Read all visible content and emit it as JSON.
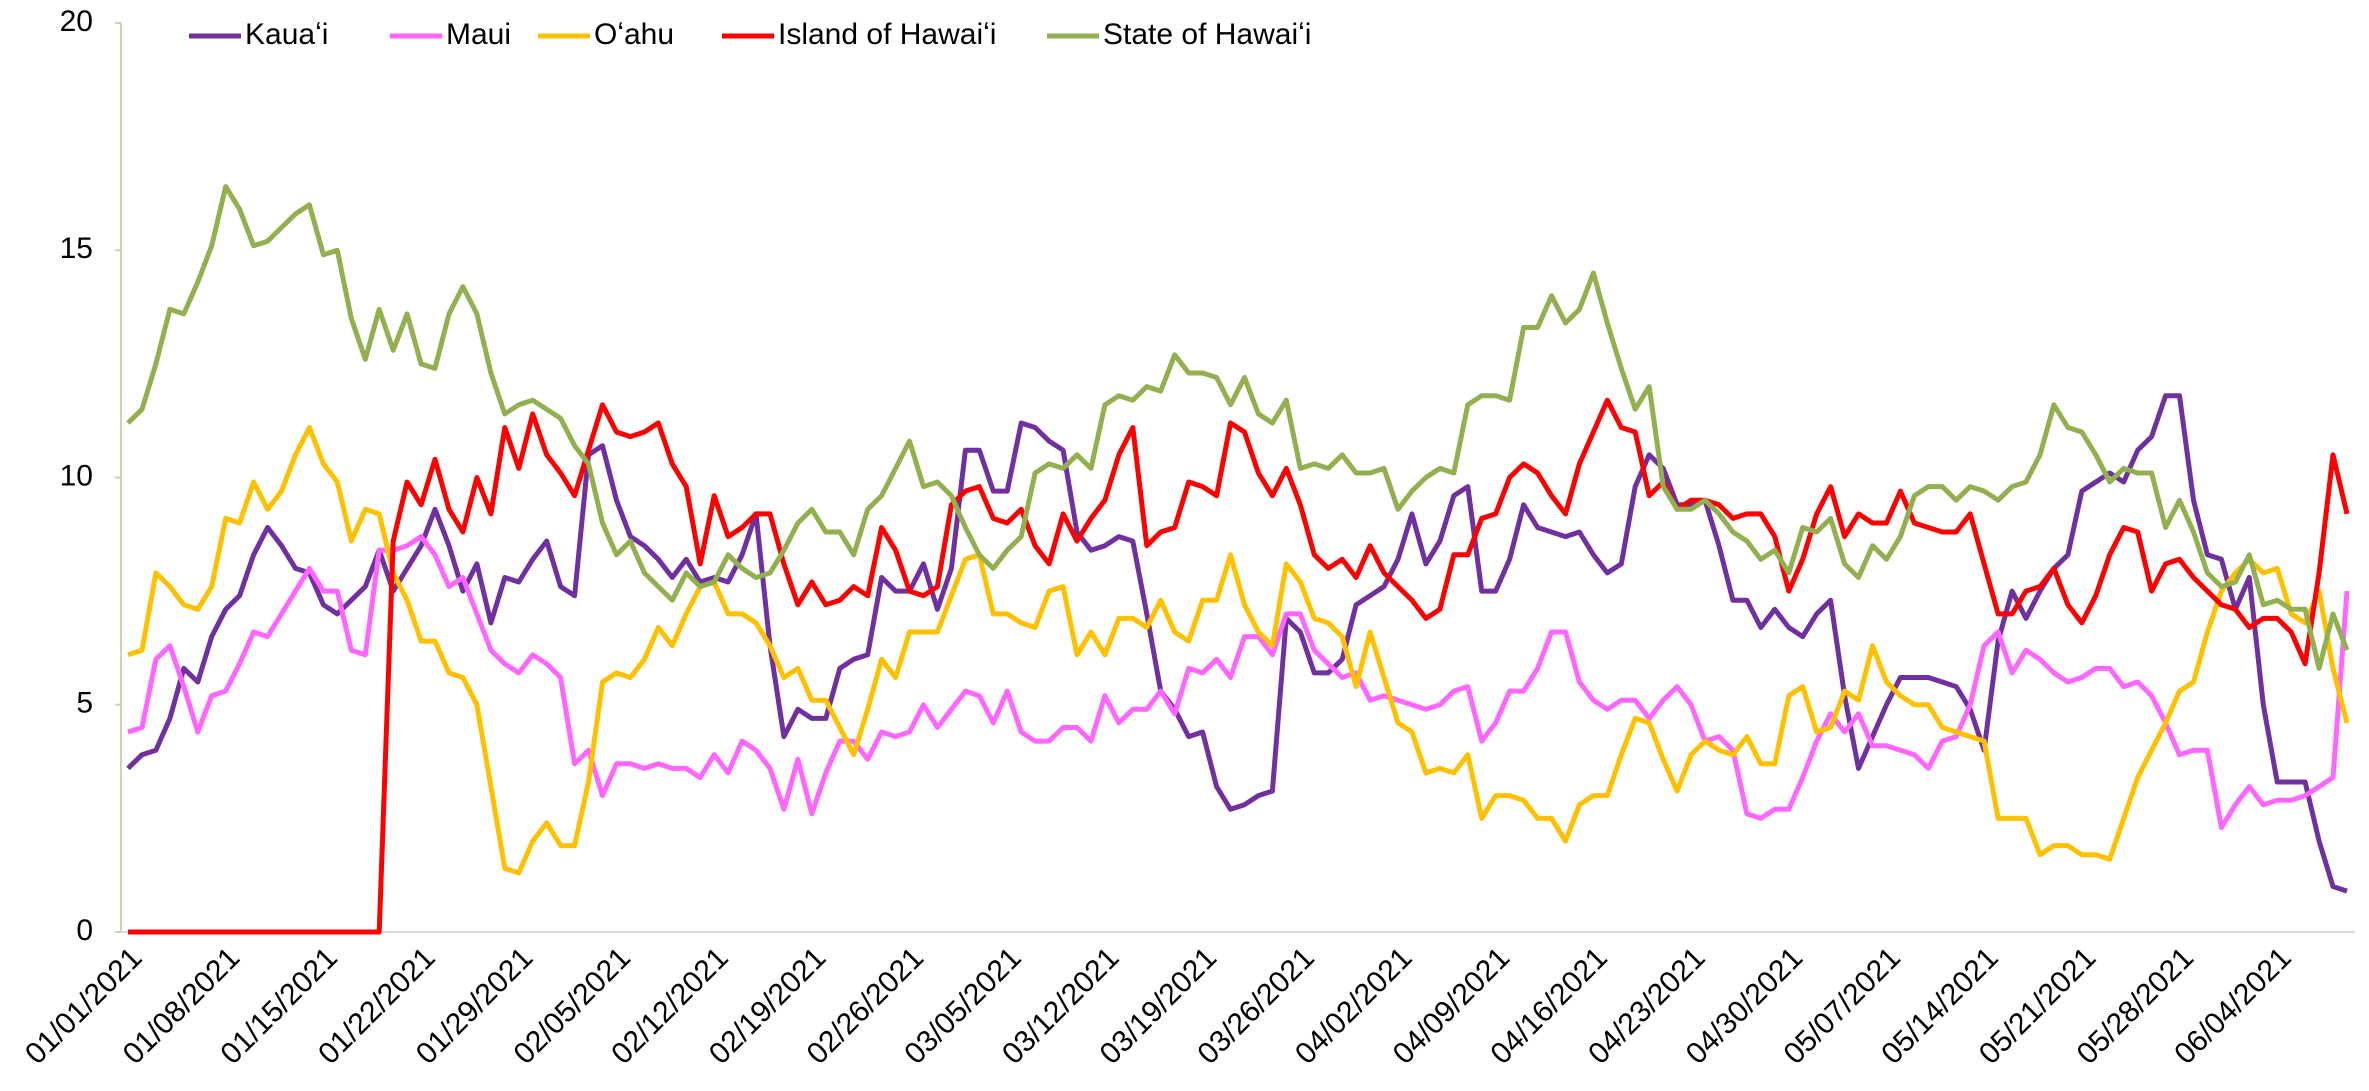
{
  "chart_data": {
    "type": "line",
    "categories": [
      "01/01/2021",
      null,
      null,
      null,
      null,
      null,
      null,
      "01/08/2021",
      null,
      null,
      null,
      null,
      null,
      null,
      "01/15/2021",
      null,
      null,
      null,
      null,
      null,
      null,
      "01/22/2021",
      null,
      null,
      null,
      null,
      null,
      null,
      "01/29/2021",
      null,
      null,
      null,
      null,
      null,
      null,
      "02/05/2021",
      null,
      null,
      null,
      null,
      null,
      null,
      "02/12/2021",
      null,
      null,
      null,
      null,
      null,
      null,
      "02/19/2021",
      null,
      null,
      null,
      null,
      null,
      null,
      "02/26/2021",
      null,
      null,
      null,
      null,
      null,
      null,
      "03/05/2021",
      null,
      null,
      null,
      null,
      null,
      null,
      "03/12/2021",
      null,
      null,
      null,
      null,
      null,
      null,
      "03/19/2021",
      null,
      null,
      null,
      null,
      null,
      null,
      "03/26/2021",
      null,
      null,
      null,
      null,
      null,
      null,
      "04/02/2021",
      null,
      null,
      null,
      null,
      null,
      null,
      "04/09/2021",
      null,
      null,
      null,
      null,
      null,
      null,
      "04/16/2021",
      null,
      null,
      null,
      null,
      null,
      null,
      "04/23/2021",
      null,
      null,
      null,
      null,
      null,
      null,
      "04/30/2021",
      null,
      null,
      null,
      null,
      null,
      null,
      "05/07/2021",
      null,
      null,
      null,
      null,
      null,
      null,
      "05/14/2021",
      null,
      null,
      null,
      null,
      null,
      null,
      "05/21/2021",
      null,
      null,
      null,
      null,
      null,
      null,
      "05/28/2021",
      null,
      null,
      null,
      null,
      null,
      null,
      "06/04/2021",
      null,
      null,
      null,
      null,
      null
    ],
    "series": [
      {
        "name": "Kauaʻi",
        "color": "#7030a0",
        "values": [
          3.6,
          3.9,
          4.0,
          4.7,
          5.8,
          5.5,
          6.5,
          7.1,
          7.4,
          8.3,
          8.9,
          8.5,
          8.0,
          7.9,
          7.2,
          7.0,
          7.3,
          7.6,
          8.4,
          7.5,
          8.0,
          8.5,
          9.3,
          8.5,
          7.5,
          8.1,
          6.8,
          7.8,
          7.7,
          8.2,
          8.6,
          7.6,
          7.4,
          10.5,
          10.7,
          9.5,
          8.7,
          8.5,
          8.2,
          7.8,
          8.2,
          7.7,
          7.8,
          7.7,
          8.3,
          9.2,
          6.3,
          4.3,
          4.9,
          4.7,
          4.7,
          5.8,
          6.0,
          6.1,
          7.8,
          7.5,
          7.5,
          8.1,
          7.1,
          8.0,
          10.6,
          10.6,
          9.7,
          9.7,
          11.2,
          11.1,
          10.8,
          10.6,
          8.8,
          8.4,
          8.5,
          8.7,
          8.6,
          7.0,
          5.3,
          4.9,
          4.3,
          4.4,
          3.2,
          2.7,
          2.8,
          3.0,
          3.1,
          6.9,
          6.6,
          5.7,
          5.7,
          6.0,
          7.2,
          7.4,
          7.6,
          8.2,
          9.2,
          8.1,
          8.6,
          9.6,
          9.8,
          7.5,
          7.5,
          8.2,
          9.4,
          8.9,
          8.8,
          8.7,
          8.8,
          8.3,
          7.9,
          8.1,
          9.8,
          10.5,
          10.2,
          9.4,
          9.4,
          9.5,
          8.5,
          7.3,
          7.3,
          6.7,
          7.1,
          6.7,
          6.5,
          7.0,
          7.3,
          5.2,
          3.6,
          4.3,
          5.0,
          5.6,
          5.6,
          5.6,
          5.5,
          5.4,
          4.9,
          4.0,
          6.4,
          7.5,
          6.9,
          7.5,
          8.0,
          8.3,
          9.7,
          9.9,
          10.1,
          9.9,
          10.6,
          10.9,
          11.8,
          11.8,
          9.5,
          8.3,
          8.2,
          7.1,
          7.8,
          5.0,
          3.3,
          3.3,
          3.3,
          2.0,
          1.0,
          0.9
        ]
      },
      {
        "name": "Maui",
        "color": "#ff66ff",
        "values": [
          4.4,
          4.5,
          6.0,
          6.3,
          5.4,
          4.4,
          5.2,
          5.3,
          5.9,
          6.6,
          6.5,
          7.0,
          7.5,
          8.0,
          7.5,
          7.5,
          6.2,
          6.1,
          8.4,
          8.4,
          8.5,
          8.7,
          8.3,
          7.6,
          7.8,
          7.0,
          6.2,
          5.9,
          5.7,
          6.1,
          5.9,
          5.6,
          3.7,
          4.0,
          3.0,
          3.7,
          3.7,
          3.6,
          3.7,
          3.6,
          3.6,
          3.4,
          3.9,
          3.5,
          4.2,
          4.0,
          3.6,
          2.7,
          3.8,
          2.6,
          3.5,
          4.2,
          4.2,
          3.8,
          4.4,
          4.3,
          4.4,
          5.0,
          4.5,
          4.9,
          5.3,
          5.2,
          4.6,
          5.3,
          4.4,
          4.2,
          4.2,
          4.5,
          4.5,
          4.2,
          5.2,
          4.6,
          4.9,
          4.9,
          5.3,
          4.8,
          5.8,
          5.7,
          6.0,
          5.6,
          6.5,
          6.5,
          6.1,
          7.0,
          7.0,
          6.2,
          5.9,
          5.6,
          5.7,
          5.1,
          5.2,
          5.1,
          5.0,
          4.9,
          5.0,
          5.3,
          5.4,
          4.2,
          4.6,
          5.3,
          5.3,
          5.8,
          6.6,
          6.6,
          5.5,
          5.1,
          4.9,
          5.1,
          5.1,
          4.7,
          5.1,
          5.4,
          5.0,
          4.2,
          4.3,
          4.0,
          2.6,
          2.5,
          2.7,
          2.7,
          3.4,
          4.2,
          4.8,
          4.4,
          4.8,
          4.1,
          4.1,
          4.0,
          3.9,
          3.6,
          4.2,
          4.3,
          5.0,
          6.3,
          6.6,
          5.7,
          6.2,
          6.0,
          5.7,
          5.5,
          5.6,
          5.8,
          5.8,
          5.4,
          5.5,
          5.2,
          4.6,
          3.9,
          4.0,
          4.0,
          2.3,
          2.8,
          3.2,
          2.8,
          2.9,
          2.9,
          3.0,
          3.2,
          3.4,
          7.5
        ]
      },
      {
        "name": "Oʻahu",
        "color": "#ffc000",
        "values": [
          6.1,
          6.2,
          7.9,
          7.6,
          7.2,
          7.1,
          7.6,
          9.1,
          9.0,
          9.9,
          9.3,
          9.7,
          10.5,
          11.1,
          10.3,
          9.9,
          8.6,
          9.3,
          9.2,
          7.9,
          7.3,
          6.4,
          6.4,
          5.7,
          5.6,
          5.0,
          3.2,
          1.4,
          1.3,
          2.0,
          2.4,
          1.9,
          1.9,
          3.3,
          5.5,
          5.7,
          5.6,
          6.0,
          6.7,
          6.3,
          7.0,
          7.6,
          7.7,
          7.0,
          7.0,
          6.8,
          6.3,
          5.6,
          5.8,
          5.1,
          5.1,
          4.5,
          3.9,
          4.9,
          6.0,
          5.6,
          6.6,
          6.6,
          6.6,
          7.4,
          8.2,
          8.3,
          7.0,
          7.0,
          6.8,
          6.7,
          7.5,
          7.6,
          6.1,
          6.6,
          6.1,
          6.9,
          6.9,
          6.7,
          7.3,
          6.6,
          6.4,
          7.3,
          7.3,
          8.3,
          7.2,
          6.6,
          6.3,
          8.1,
          7.7,
          6.9,
          6.8,
          6.5,
          5.4,
          6.6,
          5.6,
          4.6,
          4.4,
          3.5,
          3.6,
          3.5,
          3.9,
          2.5,
          3.0,
          3.0,
          2.9,
          2.5,
          2.5,
          2.0,
          2.8,
          3.0,
          3.0,
          3.9,
          4.7,
          4.6,
          3.8,
          3.1,
          3.9,
          4.2,
          4.0,
          3.9,
          4.3,
          3.7,
          3.7,
          5.2,
          5.4,
          4.4,
          4.5,
          5.3,
          5.1,
          6.3,
          5.5,
          5.2,
          5.0,
          5.0,
          4.5,
          4.4,
          4.3,
          4.2,
          2.5,
          2.5,
          2.5,
          1.7,
          1.9,
          1.9,
          1.7,
          1.7,
          1.6,
          2.5,
          3.4,
          4.0,
          4.6,
          5.3,
          5.5,
          6.6,
          7.5,
          7.9,
          8.2,
          7.9,
          8.0,
          7.0,
          6.8,
          7.5,
          5.8,
          4.6
        ]
      },
      {
        "name": "Island of Hawaiʻi",
        "color": "#ff0000",
        "values": [
          0,
          0,
          0,
          0,
          0,
          0,
          0,
          0,
          0,
          0,
          0,
          0,
          0,
          0,
          0,
          0,
          0,
          0,
          0,
          8.6,
          9.9,
          9.4,
          10.4,
          9.3,
          8.8,
          10.0,
          9.2,
          11.1,
          10.2,
          11.4,
          10.5,
          10.1,
          9.6,
          10.6,
          11.6,
          11.0,
          10.9,
          11.0,
          11.2,
          10.3,
          9.8,
          8.1,
          9.6,
          8.7,
          8.9,
          9.2,
          9.2,
          8.1,
          7.2,
          7.7,
          7.2,
          7.3,
          7.6,
          7.4,
          8.9,
          8.4,
          7.5,
          7.4,
          7.6,
          9.4,
          9.7,
          9.8,
          9.1,
          9.0,
          9.3,
          8.5,
          8.1,
          9.2,
          8.6,
          9.1,
          9.5,
          10.5,
          11.1,
          8.5,
          8.8,
          8.9,
          9.9,
          9.8,
          9.6,
          11.2,
          11.0,
          10.1,
          9.6,
          10.2,
          9.4,
          8.3,
          8.0,
          8.2,
          7.8,
          8.5,
          7.9,
          7.6,
          7.3,
          6.9,
          7.1,
          8.3,
          8.3,
          9.1,
          9.2,
          10.0,
          10.3,
          10.1,
          9.6,
          9.2,
          10.3,
          11.0,
          11.7,
          11.1,
          11.0,
          9.6,
          9.9,
          9.3,
          9.5,
          9.5,
          9.4,
          9.1,
          9.2,
          9.2,
          8.7,
          7.5,
          8.2,
          9.2,
          9.8,
          8.7,
          9.2,
          9.0,
          9.0,
          9.7,
          9.0,
          8.9,
          8.8,
          8.8,
          9.2,
          8.1,
          7.0,
          7.0,
          7.5,
          7.6,
          8.0,
          7.2,
          6.8,
          7.4,
          8.3,
          8.9,
          8.8,
          7.5,
          8.1,
          8.2,
          7.8,
          7.5,
          7.2,
          7.1,
          6.7,
          6.9,
          6.9,
          6.6,
          5.9,
          7.9,
          10.5,
          9.2
        ]
      },
      {
        "name": "State of Hawaiʻi",
        "color": "#92b050",
        "values": [
          11.2,
          11.5,
          12.5,
          13.7,
          13.6,
          14.3,
          15.1,
          16.4,
          15.9,
          15.1,
          15.2,
          15.5,
          15.8,
          16.0,
          14.9,
          15.0,
          13.5,
          12.6,
          13.7,
          12.8,
          13.6,
          12.5,
          12.4,
          13.6,
          14.2,
          13.6,
          12.3,
          11.4,
          11.6,
          11.7,
          11.5,
          11.3,
          10.7,
          10.3,
          9.0,
          8.3,
          8.6,
          7.9,
          7.6,
          7.3,
          7.9,
          7.6,
          7.7,
          8.3,
          8.0,
          7.8,
          7.9,
          8.4,
          9.0,
          9.3,
          8.8,
          8.8,
          8.3,
          9.3,
          9.6,
          10.2,
          10.8,
          9.8,
          9.9,
          9.6,
          8.9,
          8.3,
          8.0,
          8.4,
          8.7,
          10.1,
          10.3,
          10.2,
          10.5,
          10.2,
          11.6,
          11.8,
          11.7,
          12.0,
          11.9,
          12.7,
          12.3,
          12.3,
          12.2,
          11.6,
          12.2,
          11.4,
          11.2,
          11.7,
          10.2,
          10.3,
          10.2,
          10.5,
          10.1,
          10.1,
          10.2,
          9.3,
          9.7,
          10.0,
          10.2,
          10.1,
          11.6,
          11.8,
          11.8,
          11.7,
          13.3,
          13.3,
          14.0,
          13.4,
          13.7,
          14.5,
          13.4,
          12.4,
          11.5,
          12.0,
          9.8,
          9.3,
          9.3,
          9.5,
          9.2,
          8.8,
          8.6,
          8.2,
          8.4,
          7.9,
          8.9,
          8.8,
          9.1,
          8.1,
          7.8,
          8.5,
          8.2,
          8.7,
          9.6,
          9.8,
          9.8,
          9.5,
          9.8,
          9.7,
          9.5,
          9.8,
          9.9,
          10.5,
          11.6,
          11.1,
          11.0,
          10.5,
          9.9,
          10.2,
          10.1,
          10.1,
          8.9,
          9.5,
          8.8,
          7.9,
          7.6,
          7.7,
          8.3,
          7.2,
          7.3,
          7.1,
          7.1,
          5.8,
          7.0,
          6.2
        ]
      }
    ],
    "ylim": [
      0,
      20
    ],
    "yticks": [
      0,
      5,
      10,
      15,
      20
    ],
    "grid": false,
    "legend": "top"
  }
}
